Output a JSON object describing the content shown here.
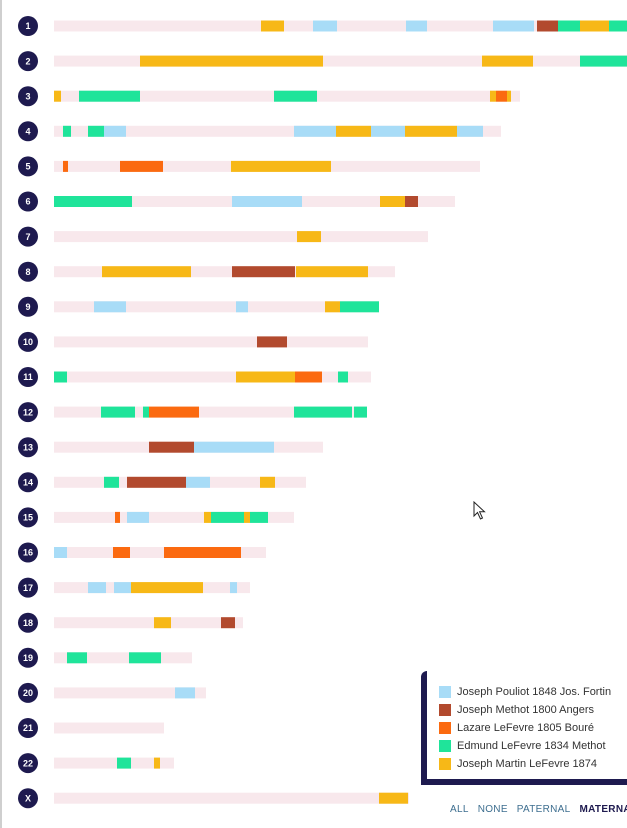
{
  "colors": {
    "track": "#f8e8ec",
    "badge": "#1e1a4f"
  },
  "chart_data": {
    "type": "chromosome-map",
    "bp_unit": "pixel-scaled",
    "legend": [
      {
        "name": "Joseph Pouliot 1848 Jos. Fortin",
        "color": "#a8dcf7"
      },
      {
        "name": "Joseph Methot 1800 Angers",
        "color": "#b24a2e"
      },
      {
        "name": "Lazare LeFevre 1805 Bouré",
        "color": "#fb6a10"
      },
      {
        "name": "Edmund LeFevre 1834 Methot",
        "color": "#1fe49a"
      },
      {
        "name": "Joseph Martin LeFevre 1874",
        "color": "#f7b817"
      }
    ],
    "chromosomes": [
      {
        "label": "1",
        "length": 573,
        "segments": [
          [
            207,
            230,
            4
          ],
          [
            259,
            283,
            0
          ],
          [
            352,
            373,
            0
          ],
          [
            439,
            480,
            0
          ],
          [
            483,
            504,
            1
          ],
          [
            504,
            526,
            3
          ],
          [
            526,
            555,
            4
          ],
          [
            555,
            573,
            3
          ]
        ]
      },
      {
        "label": "2",
        "length": 573,
        "segments": [
          [
            86,
            269,
            4
          ],
          [
            428,
            479,
            4
          ],
          [
            526,
            573,
            3
          ]
        ]
      },
      {
        "label": "3",
        "length": 466,
        "segments": [
          [
            0,
            7,
            4
          ],
          [
            25,
            86,
            3
          ],
          [
            220,
            263,
            3
          ],
          [
            436,
            442,
            4
          ],
          [
            442,
            453,
            2
          ],
          [
            453,
            457,
            4
          ]
        ]
      },
      {
        "label": "4",
        "length": 447,
        "segments": [
          [
            9,
            17,
            3
          ],
          [
            34,
            50,
            3
          ],
          [
            50,
            72,
            0
          ],
          [
            240,
            282,
            0
          ],
          [
            282,
            317,
            4
          ],
          [
            317,
            351,
            0
          ],
          [
            351,
            403,
            4
          ],
          [
            403,
            429,
            0
          ]
        ]
      },
      {
        "label": "5",
        "length": 426,
        "segments": [
          [
            9,
            14,
            2
          ],
          [
            66,
            109,
            2
          ],
          [
            177,
            277,
            4
          ]
        ]
      },
      {
        "label": "6",
        "length": 401,
        "segments": [
          [
            0,
            78,
            3
          ],
          [
            178,
            248,
            0
          ],
          [
            326,
            351,
            4
          ],
          [
            351,
            364,
            1
          ]
        ]
      },
      {
        "label": "7",
        "length": 374,
        "segments": [
          [
            243,
            267,
            4
          ]
        ]
      },
      {
        "label": "8",
        "length": 341,
        "segments": [
          [
            48,
            137,
            4
          ],
          [
            178,
            241,
            1
          ],
          [
            242,
            314,
            4
          ]
        ]
      },
      {
        "label": "9",
        "length": 325,
        "segments": [
          [
            40,
            72,
            0
          ],
          [
            182,
            194,
            0
          ],
          [
            271,
            286,
            4
          ],
          [
            286,
            325,
            3
          ]
        ]
      },
      {
        "label": "10",
        "length": 314,
        "segments": [
          [
            203,
            233,
            1
          ]
        ]
      },
      {
        "label": "11",
        "length": 317,
        "segments": [
          [
            0,
            13,
            3
          ],
          [
            182,
            241,
            4
          ],
          [
            241,
            268,
            2
          ],
          [
            284,
            294,
            3
          ]
        ]
      },
      {
        "label": "12",
        "length": 313,
        "segments": [
          [
            47,
            81,
            3
          ],
          [
            89,
            95,
            3
          ],
          [
            95,
            145,
            2
          ],
          [
            240,
            298,
            3
          ],
          [
            300,
            313,
            3
          ]
        ]
      },
      {
        "label": "13",
        "length": 269,
        "segments": [
          [
            95,
            140,
            1
          ],
          [
            140,
            220,
            0
          ]
        ]
      },
      {
        "label": "14",
        "length": 252,
        "segments": [
          [
            50,
            65,
            3
          ],
          [
            73,
            132,
            1
          ],
          [
            132,
            156,
            0
          ],
          [
            206,
            221,
            4
          ]
        ]
      },
      {
        "label": "15",
        "length": 240,
        "segments": [
          [
            61,
            66,
            2
          ],
          [
            73,
            95,
            0
          ],
          [
            150,
            157,
            4
          ],
          [
            157,
            190,
            3
          ],
          [
            190,
            196,
            4
          ],
          [
            196,
            214,
            3
          ]
        ]
      },
      {
        "label": "16",
        "length": 212,
        "segments": [
          [
            0,
            13,
            0
          ],
          [
            59,
            76,
            2
          ],
          [
            110,
            187,
            2
          ]
        ]
      },
      {
        "label": "17",
        "length": 196,
        "segments": [
          [
            34,
            52,
            0
          ],
          [
            60,
            77,
            0
          ],
          [
            77,
            149,
            4
          ],
          [
            176,
            183,
            0
          ]
        ]
      },
      {
        "label": "18",
        "length": 189,
        "segments": [
          [
            100,
            117,
            4
          ],
          [
            167,
            181,
            1
          ]
        ]
      },
      {
        "label": "19",
        "length": 138,
        "segments": [
          [
            13,
            33,
            3
          ],
          [
            75,
            107,
            3
          ]
        ]
      },
      {
        "label": "20",
        "length": 152,
        "segments": [
          [
            121,
            141,
            0
          ]
        ]
      },
      {
        "label": "21",
        "length": 110,
        "segments": []
      },
      {
        "label": "22",
        "length": 120,
        "segments": [
          [
            63,
            77,
            3
          ],
          [
            100,
            106,
            4
          ]
        ]
      },
      {
        "label": "X",
        "length": 355,
        "segments": [
          [
            325,
            354,
            4
          ]
        ]
      }
    ]
  },
  "filters": [
    {
      "label": "ALL",
      "active": false
    },
    {
      "label": "NONE",
      "active": false
    },
    {
      "label": "PATERNAL",
      "active": false
    },
    {
      "label": "MATERNAL",
      "active": true
    }
  ]
}
